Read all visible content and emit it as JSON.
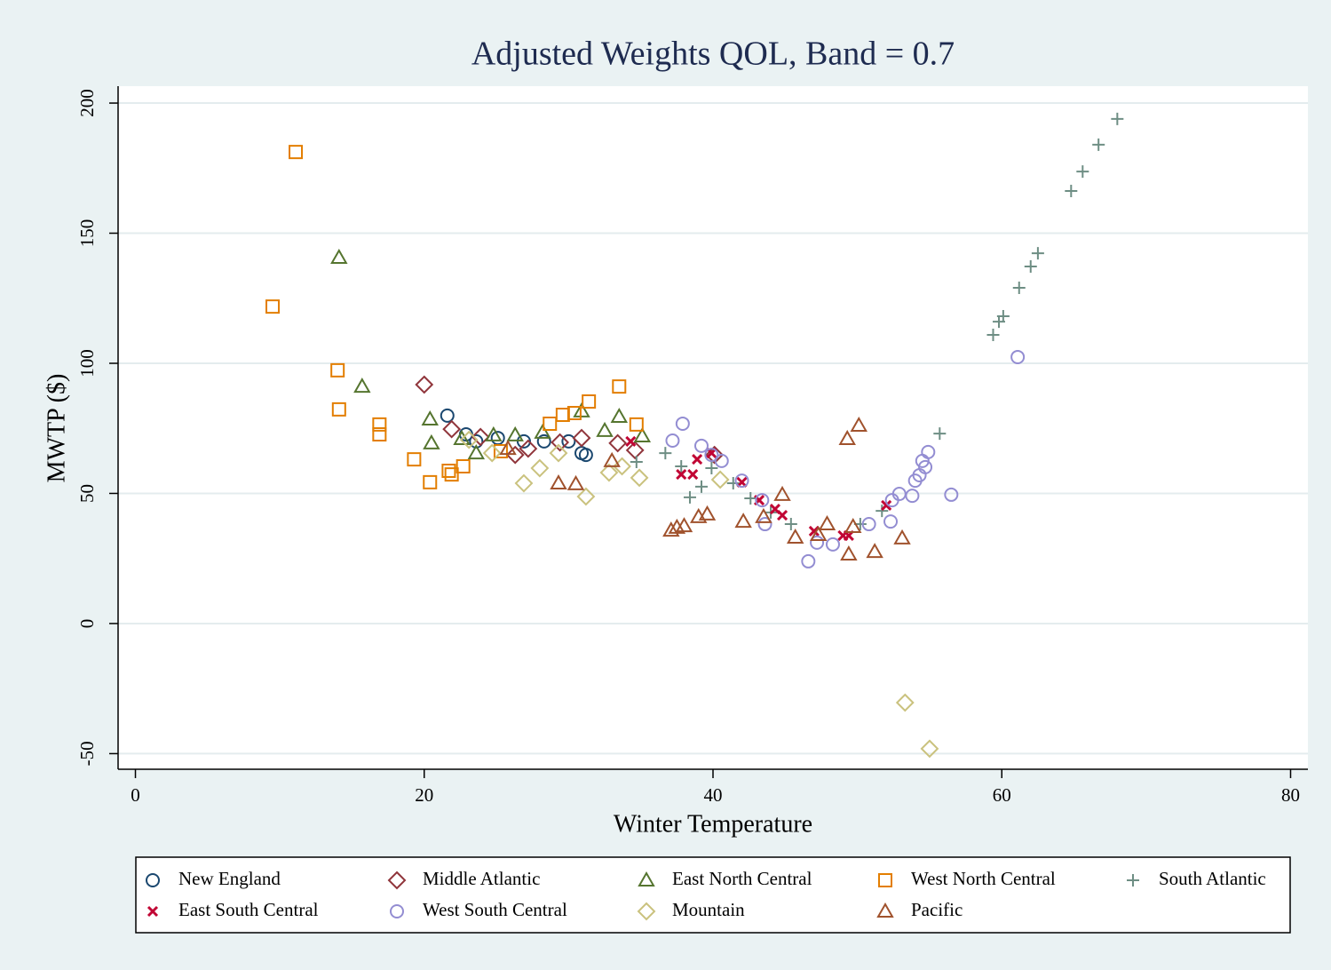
{
  "chart_data": {
    "type": "scatter",
    "title": "Adjusted Weights QOL, Band = 0.7",
    "x_label": "Winter Temperature",
    "y_label": "MWTP ($)",
    "xlim": [
      -1.2,
      81.2
    ],
    "ylim": [
      -56,
      206.5
    ],
    "xticks": [
      0,
      20,
      40,
      60,
      80
    ],
    "yticks": [
      -50,
      0,
      50,
      100,
      150,
      200
    ],
    "grid": true,
    "legend": "bottom",
    "series": [
      {
        "name": "New England",
        "color": "#1a476f",
        "marker": "circle",
        "x": [
          21.6,
          22.9,
          23.6,
          25.1,
          26.9,
          28.3,
          30.0,
          30.9,
          31.2
        ],
        "values": [
          79.9,
          72.7,
          70,
          71.3,
          70,
          70,
          70,
          65.5,
          64.8
        ]
      },
      {
        "name": "Middle Atlantic",
        "color": "#90353b",
        "marker": "diamond",
        "x": [
          20,
          21.9,
          23.9,
          26.3,
          27.2,
          29.4,
          30.9,
          33.4,
          34.6,
          40.1
        ],
        "values": [
          91.8,
          74.7,
          71.7,
          64.8,
          67.2,
          69.6,
          71.3,
          69.3,
          66.6,
          64.8
        ]
      },
      {
        "name": "East North Central",
        "color": "#55752f",
        "marker": "triangle",
        "x": [
          14.1,
          15.7,
          20.4,
          20.5,
          22.6,
          23.6,
          24.8,
          26.3,
          28.2,
          30.9,
          32.5,
          33.5,
          35.1
        ],
        "values": [
          140.6,
          91.1,
          78.5,
          69.3,
          71,
          65.5,
          72.4,
          72.4,
          73.4,
          81.6,
          74.1,
          79.5,
          72
        ]
      },
      {
        "name": "West North Central",
        "color": "#e37e00",
        "marker": "square",
        "x": [
          9.5,
          11.1,
          14,
          14.1,
          16.9,
          16.9,
          19.3,
          20.4,
          21.7,
          21.9,
          22.7,
          25.3,
          28.7,
          29.6,
          30.4,
          31.4,
          33.5,
          34.7
        ],
        "values": [
          121.8,
          181.2,
          97.3,
          82.3,
          76.5,
          72.7,
          63.1,
          54.3,
          58.7,
          57.3,
          60.4,
          66.2,
          76.8,
          80.2,
          80.9,
          85.3,
          91.1,
          76.5
        ]
      },
      {
        "name": "South Atlantic",
        "color": "#6e8e84",
        "marker": "plus",
        "x": [
          34.7,
          36.7,
          37.8,
          38.4,
          39.2,
          39.9,
          41.4,
          42.6,
          44,
          45.4,
          50.2,
          51.7,
          55.7,
          59.4,
          59.8,
          60.1,
          61.2,
          62,
          62.5,
          64.8,
          65.6,
          66.7,
          68
        ],
        "values": [
          62.1,
          65.5,
          60.4,
          48.5,
          52.6,
          59.7,
          53.9,
          48.1,
          42.7,
          38.2,
          38.2,
          43.3,
          73,
          110.9,
          116,
          118.1,
          129,
          137.2,
          142.3,
          166.2,
          173.7,
          184,
          193.9
        ]
      },
      {
        "name": "East South Central",
        "color": "#c10534",
        "marker": "x",
        "x": [
          34.3,
          37.8,
          38.6,
          38.9,
          39.9,
          42,
          43.2,
          44.3,
          44.8,
          47,
          49,
          49.4,
          52
        ],
        "values": [
          70,
          57.3,
          57.3,
          63.1,
          65.5,
          54.3,
          47.4,
          44,
          41.6,
          35.5,
          33.8,
          33.8,
          45.4
        ]
      },
      {
        "name": "West South Central",
        "color": "#938dd2",
        "marker": "circle",
        "x": [
          37.2,
          37.9,
          39.2,
          39.9,
          40.6,
          42,
          43.4,
          43.6,
          46.6,
          47.2,
          48.3,
          50.8,
          52.3,
          52.4,
          52.9,
          53.8,
          54,
          54.3,
          54.5,
          54.7,
          54.9,
          56.5,
          61.1
        ],
        "values": [
          70.3,
          76.8,
          68.3,
          64.8,
          62.5,
          54.9,
          47.4,
          38.2,
          23.9,
          31.1,
          30.4,
          38.2,
          39.2,
          47.4,
          49.8,
          49.1,
          54.9,
          57,
          62.5,
          60.1,
          65.9,
          49.5,
          102.4
        ]
      },
      {
        "name": "Mountain",
        "color": "#cac27e",
        "marker": "diamond",
        "x": [
          23.1,
          24.7,
          26.9,
          28,
          29.3,
          31.2,
          32.8,
          33.7,
          34.9,
          40.5,
          53.3,
          55
        ],
        "values": [
          70.6,
          65.5,
          53.9,
          59.7,
          65.5,
          48.8,
          58,
          60.4,
          56,
          55.3,
          -30.4,
          -48.1
        ]
      },
      {
        "name": "Pacific",
        "color": "#a0522d",
        "marker": "triangle",
        "x": [
          25.8,
          29.3,
          30.5,
          33,
          37.1,
          37.5,
          38,
          39,
          39.6,
          42.1,
          43.5,
          44.8,
          45.7,
          47.3,
          47.9,
          49.3,
          49.4,
          49.7,
          50.1,
          51.2,
          53.1
        ],
        "values": [
          67.2,
          53.9,
          53.6,
          62.5,
          35.8,
          36.9,
          37.5,
          41,
          42,
          39.2,
          41,
          49.5,
          33.1,
          34.1,
          38.2,
          71,
          26.6,
          37.2,
          76.1,
          27.6,
          32.8
        ]
      }
    ]
  }
}
